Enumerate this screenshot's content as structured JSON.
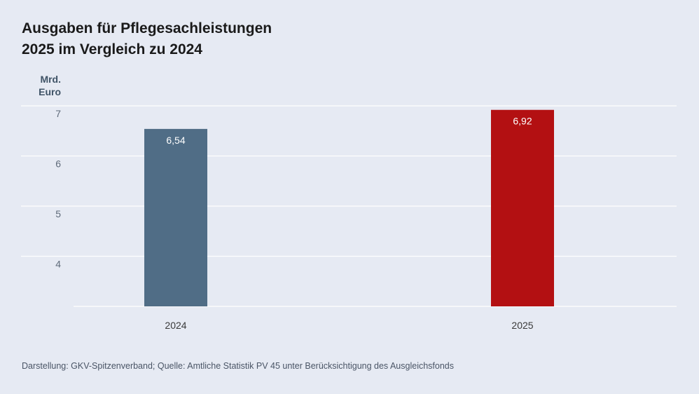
{
  "title_line1": "Ausgaben für Pflegesachleistungen",
  "title_line2": "2025 im Vergleich zu 2024",
  "source": "Darstellung: GKV-Spitzenverband; Quelle: Amtliche Statistik PV 45 unter Berücksichtigung des Ausgleichsfonds",
  "colors": {
    "background": "#e6eaf3",
    "bar_2024": "#506d86",
    "bar_2025": "#b31012",
    "grid": "#ffffff",
    "tick_text": "#5f6b7a",
    "unit_text": "#3f5366"
  },
  "chart_data": {
    "type": "bar",
    "ylabel_lines": [
      "Mrd.",
      "Euro"
    ],
    "categories": [
      "2024",
      "2025"
    ],
    "values": [
      6.54,
      6.92
    ],
    "value_labels": [
      "6,54",
      "6,92"
    ],
    "bar_colors": [
      "#506d86",
      "#b31012"
    ],
    "yticks": [
      4,
      5,
      6,
      7
    ],
    "ylim": [
      3,
      7
    ],
    "grid": true,
    "legend": false
  }
}
